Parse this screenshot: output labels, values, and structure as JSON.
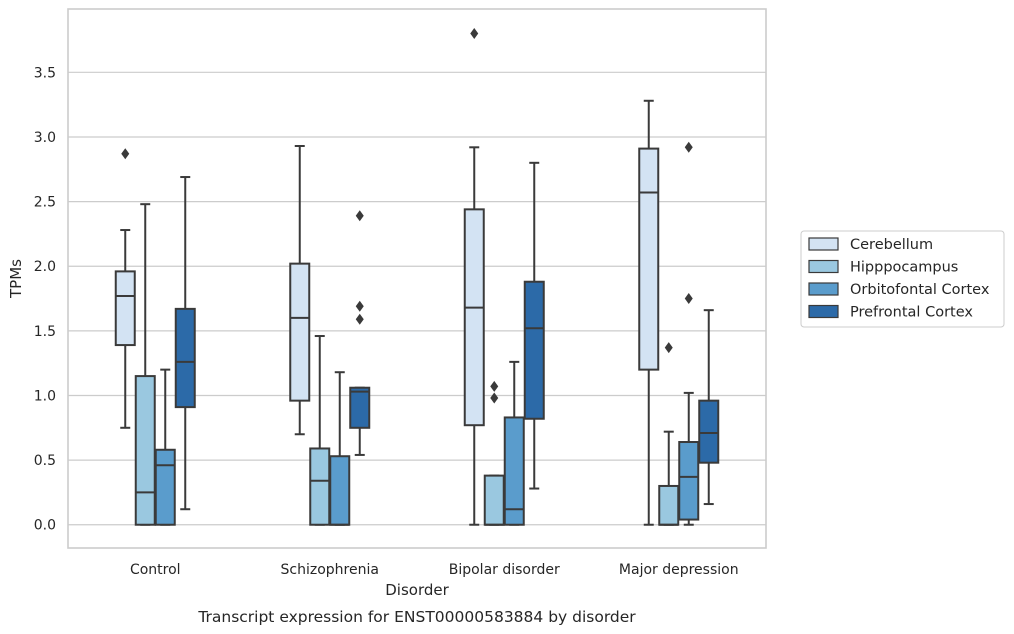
{
  "caption": "Transcript expression for ENST00000583884 by disorder",
  "chart_data": {
    "type": "box",
    "title": "",
    "xlabel": "Disorder",
    "ylabel": "TPMs",
    "ylim": [
      -0.18,
      3.99
    ],
    "yticks": [
      0.0,
      0.5,
      1.0,
      1.5,
      2.0,
      2.5,
      3.0,
      3.5
    ],
    "ytick_labels": [
      "0.0",
      "0.5",
      "1.0",
      "1.5",
      "2.0",
      "2.5",
      "3.0",
      "3.5"
    ],
    "grid": "horizontal",
    "legend_position": "right",
    "categories": [
      "Control",
      "Schizophrenia",
      "Bipolar disorder",
      "Major depression"
    ],
    "series": [
      {
        "name": "Cerebellum",
        "color": "#d3e3f3",
        "boxes": [
          {
            "whisker_low": 0.75,
            "q1": 1.39,
            "median": 1.77,
            "q3": 1.96,
            "whisker_high": 2.28,
            "outliers": [
              2.87
            ]
          },
          {
            "whisker_low": 0.7,
            "q1": 0.96,
            "median": 1.6,
            "q3": 2.02,
            "whisker_high": 2.93,
            "outliers": []
          },
          {
            "whisker_low": 0.0,
            "q1": 0.77,
            "median": 1.68,
            "q3": 2.44,
            "whisker_high": 2.92,
            "outliers": [
              3.8
            ]
          },
          {
            "whisker_low": 0.0,
            "q1": 1.2,
            "median": 2.57,
            "q3": 2.91,
            "whisker_high": 3.28,
            "outliers": []
          }
        ]
      },
      {
        "name": "Hipppocampus",
        "color": "#9ac8e0",
        "boxes": [
          {
            "whisker_low": 0.0,
            "q1": 0.0,
            "median": 0.25,
            "q3": 1.15,
            "whisker_high": 2.48,
            "outliers": []
          },
          {
            "whisker_low": 0.0,
            "q1": 0.0,
            "median": 0.34,
            "q3": 0.59,
            "whisker_high": 1.46,
            "outliers": []
          },
          {
            "whisker_low": 0.0,
            "q1": 0.0,
            "median": 0.0,
            "q3": 0.38,
            "whisker_high": 0.38,
            "outliers": [
              0.98,
              1.07
            ]
          },
          {
            "whisker_low": 0.0,
            "q1": 0.0,
            "median": 0.0,
            "q3": 0.3,
            "whisker_high": 0.72,
            "outliers": [
              1.37
            ]
          }
        ]
      },
      {
        "name": "Orbitofontal Cortex",
        "color": "#5a9ccc",
        "boxes": [
          {
            "whisker_low": 0.0,
            "q1": 0.0,
            "median": 0.46,
            "q3": 0.58,
            "whisker_high": 1.2,
            "outliers": []
          },
          {
            "whisker_low": 0.0,
            "q1": 0.0,
            "median": 0.0,
            "q3": 0.53,
            "whisker_high": 1.18,
            "outliers": []
          },
          {
            "whisker_low": 0.0,
            "q1": 0.0,
            "median": 0.12,
            "q3": 0.83,
            "whisker_high": 1.26,
            "outliers": []
          },
          {
            "whisker_low": 0.0,
            "q1": 0.04,
            "median": 0.37,
            "q3": 0.64,
            "whisker_high": 1.02,
            "outliers": [
              1.75,
              2.92
            ]
          }
        ]
      },
      {
        "name": "Prefrontal Cortex",
        "color": "#2c6aa8",
        "boxes": [
          {
            "whisker_low": 0.12,
            "q1": 0.91,
            "median": 1.26,
            "q3": 1.67,
            "whisker_high": 2.69,
            "outliers": []
          },
          {
            "whisker_low": 0.54,
            "q1": 0.75,
            "median": 1.03,
            "q3": 1.06,
            "whisker_high": 1.06,
            "outliers": [
              1.59,
              1.69,
              2.39
            ]
          },
          {
            "whisker_low": 0.28,
            "q1": 0.82,
            "median": 1.52,
            "q3": 1.88,
            "whisker_high": 2.8,
            "outliers": []
          },
          {
            "whisker_low": 0.16,
            "q1": 0.48,
            "median": 0.71,
            "q3": 0.96,
            "whisker_high": 1.66,
            "outliers": []
          }
        ]
      }
    ]
  }
}
